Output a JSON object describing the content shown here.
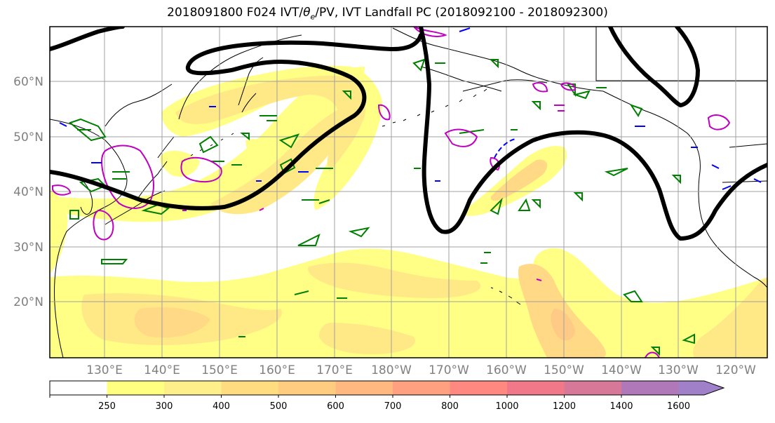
{
  "title": {
    "prefix": "2018091800 F024 IVT/",
    "theta": "θ",
    "theta_sub": "e",
    "suffix": "/PV, IVT Landfall PC (2018092100 - 2018092300)"
  },
  "lat_labels": [
    "60°N",
    "50°N",
    "40°N",
    "30°N",
    "20°N"
  ],
  "lon_labels": [
    "130°E",
    "140°E",
    "150°E",
    "160°E",
    "170°E",
    "180°W",
    "170°W",
    "160°W",
    "150°W",
    "140°W",
    "130°W",
    "120°W"
  ],
  "colorbar": {
    "ticks": [
      "250",
      "300",
      "400",
      "500",
      "600",
      "700",
      "800",
      "1000",
      "1200",
      "1400",
      "1600"
    ],
    "colors": [
      "#ffffff",
      "#ffff80",
      "#ffef8a",
      "#ffdc80",
      "#ffcc80",
      "#ffb880",
      "#ffa080",
      "#ff8880",
      "#f07888",
      "#d87898",
      "#b078b8",
      "#a080c8"
    ],
    "extend": "max"
  },
  "legend_colors": {
    "theta_e": "#008000",
    "pv_positive": "#c000c0",
    "pv_negative": "#0000ff",
    "landfall_pc": "#000000"
  }
}
